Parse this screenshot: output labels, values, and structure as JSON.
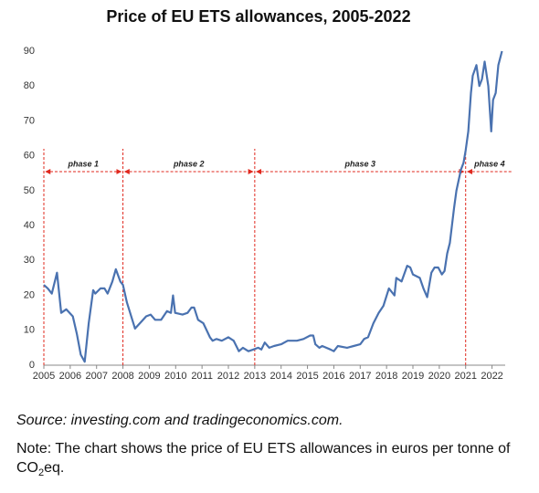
{
  "chart_data": {
    "type": "line",
    "title": "Price of EU ETS allowances, 2005-2022",
    "x": [
      2005.0,
      2005.15,
      2005.3,
      2005.5,
      2005.66,
      2005.85,
      2006.1,
      2006.25,
      2006.4,
      2006.55,
      2006.7,
      2006.87,
      2006.95,
      2007.15,
      2007.3,
      2007.42,
      2007.6,
      2007.73,
      2007.9,
      2008.0,
      2008.15,
      2008.46,
      2008.7,
      2008.88,
      2009.05,
      2009.22,
      2009.45,
      2009.67,
      2009.82,
      2009.9,
      2009.98,
      2010.26,
      2010.45,
      2010.6,
      2010.7,
      2010.85,
      2011.05,
      2011.3,
      2011.4,
      2011.55,
      2011.75,
      2012.0,
      2012.2,
      2012.4,
      2012.55,
      2012.76,
      2012.95,
      2013.13,
      2013.25,
      2013.38,
      2013.55,
      2013.73,
      2014.0,
      2014.25,
      2014.6,
      2014.85,
      2015.1,
      2015.22,
      2015.3,
      2015.45,
      2015.56,
      2015.87,
      2016.0,
      2016.15,
      2016.5,
      2016.75,
      2017.0,
      2017.15,
      2017.3,
      2017.5,
      2017.7,
      2017.88,
      2018.09,
      2018.3,
      2018.37,
      2018.57,
      2018.78,
      2018.9,
      2019.0,
      2019.26,
      2019.4,
      2019.54,
      2019.7,
      2019.82,
      2019.96,
      2020.1,
      2020.2,
      2020.3,
      2020.4,
      2020.48,
      2020.56,
      2020.65,
      2020.82,
      2020.92,
      2021.0,
      2021.1,
      2021.2,
      2021.27,
      2021.41,
      2021.52,
      2021.62,
      2021.72,
      2021.86,
      2021.97,
      2022.04,
      2022.14,
      2022.24,
      2022.38
    ],
    "values": [
      23,
      22,
      20.5,
      26.5,
      15,
      16,
      14,
      9,
      3,
      1,
      12,
      21.5,
      20.5,
      22,
      22,
      20.5,
      24,
      27.5,
      24,
      23,
      18,
      10.5,
      12.5,
      14,
      14.5,
      13,
      13,
      15.5,
      15,
      20,
      15,
      14.5,
      15,
      16.5,
      16.5,
      13,
      12,
      8,
      7,
      7.5,
      7,
      8,
      7,
      4,
      5,
      4,
      4.5,
      5,
      4.5,
      6.5,
      5,
      5.5,
      6,
      7,
      7,
      7.5,
      8.5,
      8.5,
      6,
      5,
      5.5,
      4.5,
      4,
      5.5,
      5,
      5.5,
      6,
      7.5,
      8,
      12,
      15,
      17,
      22,
      20,
      25,
      24,
      28.5,
      28,
      26,
      25,
      22,
      19.5,
      26.5,
      28,
      28,
      26,
      27,
      32,
      35,
      40,
      45,
      50,
      56,
      58,
      61.5,
      67,
      78,
      83,
      86,
      80,
      82,
      87,
      80,
      67,
      76,
      78,
      86,
      90
    ],
    "color": "#4a72b0",
    "xlim": [
      2005,
      2022.5
    ],
    "xticks": [
      2005,
      2006,
      2007,
      2008,
      2009,
      2010,
      2011,
      2012,
      2013,
      2014,
      2015,
      2016,
      2017,
      2018,
      2019,
      2020,
      2021,
      2022
    ],
    "ylim": [
      0,
      90
    ],
    "yticks": [
      0,
      10,
      20,
      30,
      40,
      50,
      60,
      70,
      80,
      90
    ],
    "phase_boundaries": [
      2005,
      2008,
      2013,
      2021
    ],
    "phase_color": "#e0281e",
    "phases": [
      "phase 1",
      "phase 2",
      "phase 3",
      "phase 4"
    ]
  },
  "footer": {
    "source": "Source: investing.com and tradingeconomics.com.",
    "note": "Note: The chart shows the price of EU ETS allowances in euros per tonne of CO",
    "note_subscript": "2",
    "note_end": "eq."
  }
}
